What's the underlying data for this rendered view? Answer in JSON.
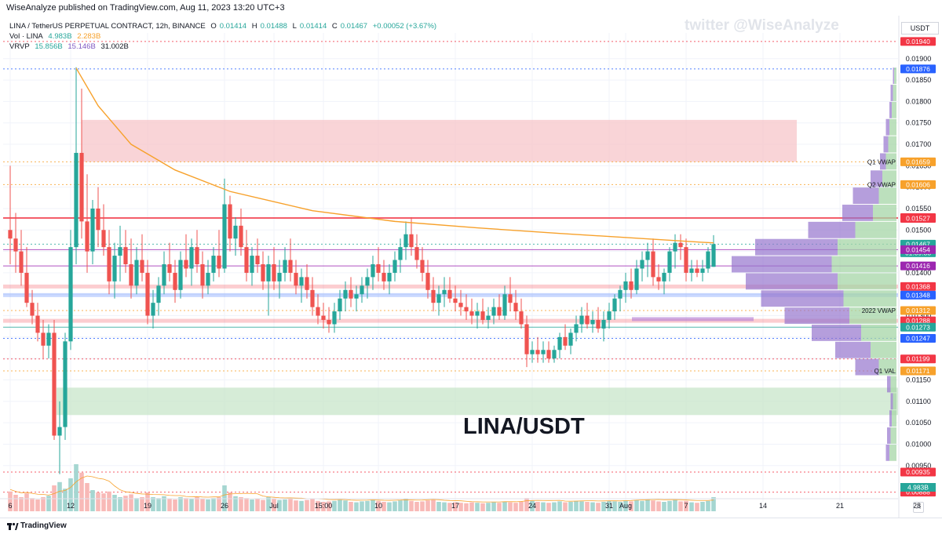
{
  "header": {
    "published": "WiseAnalyze published on TradingView.com, Aug 11, 2023 13:20 UTC+3"
  },
  "legend": {
    "symbol_line": "LINA / TetherUS PERPETUAL CONTRACT, 12h, BINANCE",
    "ohlc": [
      {
        "k": "O",
        "v": "0.01414"
      },
      {
        "k": "H",
        "v": "0.01488"
      },
      {
        "k": "L",
        "v": "0.01414"
      },
      {
        "k": "C",
        "v": "0.01467"
      }
    ],
    "change": "+0.00052 (+3.67%)",
    "vol_label": "Vol · LINA",
    "vol_1": "4.983B",
    "vol_2": "2.283B",
    "vrvp_label": "VRVP",
    "vrvp_1": "15.856B",
    "vrvp_2": "15.146B",
    "vrvp_3": "31.002B"
  },
  "watermark": "twitter @WiseAnalyze",
  "big_title": "LINA/USDT",
  "currency_button": "USDT",
  "footer": {
    "brand": "TradingView",
    "auto": "A"
  },
  "colors": {
    "up": "#26a69a",
    "down": "#ef5350",
    "vwap": "#f7a12b",
    "resistance_zone": "#f7c6c9",
    "support_zone": "#c8e6c9",
    "poc_purple": "#b07cd6",
    "vp_up": "#a5d6a7",
    "vp_down": "#9575cd"
  },
  "chart_data": {
    "type": "candlestick",
    "title": "LINA/USDT",
    "pair": "LINA / TetherUS PERPETUAL CONTRACT",
    "interval": "12h",
    "exchange": "BINANCE",
    "ylim": [
      0.0088,
      0.0196
    ],
    "y_ticks": [
      "0.00950",
      "0.01000",
      "0.01050",
      "0.01100",
      "0.01150",
      "0.01200",
      "0.01250",
      "0.01300",
      "0.01350",
      "0.01400",
      "0.01450",
      "0.01500",
      "0.01550",
      "0.01600",
      "0.01650",
      "0.01700",
      "0.01750",
      "0.01800",
      "0.01850",
      "0.01900"
    ],
    "x_ticks": [
      {
        "label": "6",
        "i": 0
      },
      {
        "label": "12",
        "i": 11
      },
      {
        "label": "19",
        "i": 25
      },
      {
        "label": "26",
        "i": 39
      },
      {
        "label": "Jul",
        "i": 48
      },
      {
        "label": "15:00",
        "i": 57
      },
      {
        "label": "10",
        "i": 67
      },
      {
        "label": "17",
        "i": 81
      },
      {
        "label": "24",
        "i": 95
      },
      {
        "label": "31",
        "i": 109
      },
      {
        "label": "Aug",
        "i": 112
      },
      {
        "label": "7",
        "i": 123
      },
      {
        "label": "14",
        "i": 137
      },
      {
        "label": "21",
        "i": 151
      },
      {
        "label": "28",
        "i": 165
      }
    ],
    "candles_ohlc": [
      [
        0.015,
        0.0165,
        0.0142,
        0.0148
      ],
      [
        0.0148,
        0.0154,
        0.014,
        0.0145
      ],
      [
        0.0145,
        0.015,
        0.0137,
        0.014
      ],
      [
        0.014,
        0.0146,
        0.0132,
        0.0133
      ],
      [
        0.0133,
        0.0136,
        0.0128,
        0.013
      ],
      [
        0.013,
        0.0133,
        0.0124,
        0.0126
      ],
      [
        0.0126,
        0.0129,
        0.012,
        0.0123
      ],
      [
        0.0123,
        0.0128,
        0.012,
        0.0126
      ],
      [
        0.0126,
        0.0129,
        0.0101,
        0.0102
      ],
      [
        0.0102,
        0.011,
        0.0093,
        0.0104
      ],
      [
        0.0104,
        0.0126,
        0.0101,
        0.0124
      ],
      [
        0.0124,
        0.015,
        0.0122,
        0.0146
      ],
      [
        0.0146,
        0.0188,
        0.0142,
        0.0168
      ],
      [
        0.0168,
        0.0183,
        0.0148,
        0.0152
      ],
      [
        0.0152,
        0.0163,
        0.014,
        0.0145
      ],
      [
        0.0145,
        0.0157,
        0.0142,
        0.0155
      ],
      [
        0.0155,
        0.016,
        0.0146,
        0.015
      ],
      [
        0.015,
        0.0156,
        0.0144,
        0.0146
      ],
      [
        0.0146,
        0.015,
        0.0135,
        0.0138
      ],
      [
        0.0138,
        0.0147,
        0.0134,
        0.0144
      ],
      [
        0.0144,
        0.0151,
        0.0138,
        0.0146
      ],
      [
        0.0146,
        0.015,
        0.014,
        0.0142
      ],
      [
        0.0142,
        0.0148,
        0.0134,
        0.0137
      ],
      [
        0.0137,
        0.0146,
        0.0135,
        0.0143
      ],
      [
        0.0143,
        0.0149,
        0.0138,
        0.014
      ],
      [
        0.014,
        0.0143,
        0.0128,
        0.013
      ],
      [
        0.013,
        0.0136,
        0.0127,
        0.0133
      ],
      [
        0.0133,
        0.0139,
        0.013,
        0.0137
      ],
      [
        0.0137,
        0.0145,
        0.0135,
        0.0142
      ],
      [
        0.0142,
        0.0147,
        0.0138,
        0.014
      ],
      [
        0.014,
        0.0143,
        0.0133,
        0.0136
      ],
      [
        0.0136,
        0.0145,
        0.0134,
        0.0143
      ],
      [
        0.0143,
        0.0149,
        0.0139,
        0.0141
      ],
      [
        0.0141,
        0.0148,
        0.0137,
        0.0146
      ],
      [
        0.0146,
        0.015,
        0.014,
        0.0142
      ],
      [
        0.0142,
        0.0145,
        0.0134,
        0.0137
      ],
      [
        0.0137,
        0.0143,
        0.0135,
        0.014
      ],
      [
        0.014,
        0.0146,
        0.0138,
        0.0144
      ],
      [
        0.0144,
        0.015,
        0.0139,
        0.0141
      ],
      [
        0.0141,
        0.0162,
        0.014,
        0.0156
      ],
      [
        0.0156,
        0.0158,
        0.0145,
        0.0148
      ],
      [
        0.0148,
        0.0153,
        0.0144,
        0.0151
      ],
      [
        0.0151,
        0.0155,
        0.0144,
        0.0146
      ],
      [
        0.0146,
        0.015,
        0.0138,
        0.014
      ],
      [
        0.014,
        0.0146,
        0.0137,
        0.0144
      ],
      [
        0.0144,
        0.0148,
        0.014,
        0.0142
      ],
      [
        0.0142,
        0.0145,
        0.0136,
        0.0138
      ],
      [
        0.0138,
        0.0144,
        0.013,
        0.0142
      ],
      [
        0.0142,
        0.0146,
        0.0136,
        0.0138
      ],
      [
        0.0138,
        0.0143,
        0.0134,
        0.014
      ],
      [
        0.014,
        0.0146,
        0.0138,
        0.0143
      ],
      [
        0.0143,
        0.0148,
        0.0138,
        0.014
      ],
      [
        0.014,
        0.0143,
        0.0135,
        0.0137
      ],
      [
        0.0137,
        0.0141,
        0.0133,
        0.0139
      ],
      [
        0.0139,
        0.0142,
        0.0134,
        0.0136
      ],
      [
        0.0136,
        0.0139,
        0.013,
        0.0132
      ],
      [
        0.0132,
        0.0135,
        0.0128,
        0.013
      ],
      [
        0.013,
        0.0133,
        0.0127,
        0.0129
      ],
      [
        0.0129,
        0.0132,
        0.0126,
        0.0128
      ],
      [
        0.0128,
        0.0133,
        0.0126,
        0.0131
      ],
      [
        0.0131,
        0.0136,
        0.0129,
        0.0134
      ],
      [
        0.0134,
        0.0138,
        0.0131,
        0.0136
      ],
      [
        0.0136,
        0.0139,
        0.0132,
        0.0134
      ],
      [
        0.0134,
        0.0137,
        0.0131,
        0.0135
      ],
      [
        0.0135,
        0.0139,
        0.0133,
        0.0137
      ],
      [
        0.0137,
        0.0141,
        0.0134,
        0.0139
      ],
      [
        0.0139,
        0.0144,
        0.0136,
        0.0142
      ],
      [
        0.0142,
        0.0146,
        0.0138,
        0.014
      ],
      [
        0.014,
        0.0143,
        0.0136,
        0.0138
      ],
      [
        0.0138,
        0.0142,
        0.0135,
        0.014
      ],
      [
        0.014,
        0.0145,
        0.0138,
        0.0143
      ],
      [
        0.0143,
        0.0148,
        0.014,
        0.0146
      ],
      [
        0.0146,
        0.0152,
        0.0143,
        0.0149
      ],
      [
        0.0149,
        0.0153,
        0.0144,
        0.0146
      ],
      [
        0.0146,
        0.0149,
        0.0141,
        0.0143
      ],
      [
        0.0143,
        0.0146,
        0.0138,
        0.014
      ],
      [
        0.014,
        0.0143,
        0.0134,
        0.0136
      ],
      [
        0.0136,
        0.0139,
        0.0131,
        0.0133
      ],
      [
        0.0133,
        0.0137,
        0.013,
        0.0135
      ],
      [
        0.0135,
        0.0139,
        0.0132,
        0.0136
      ],
      [
        0.0136,
        0.0139,
        0.0133,
        0.0134
      ],
      [
        0.0134,
        0.0137,
        0.0131,
        0.0133
      ],
      [
        0.0133,
        0.0136,
        0.013,
        0.0132
      ],
      [
        0.0132,
        0.0135,
        0.0129,
        0.0131
      ],
      [
        0.0131,
        0.0134,
        0.0128,
        0.013
      ],
      [
        0.013,
        0.0133,
        0.0127,
        0.0131
      ],
      [
        0.0131,
        0.0134,
        0.0128,
        0.0129
      ],
      [
        0.0129,
        0.0132,
        0.0127,
        0.013
      ],
      [
        0.013,
        0.0134,
        0.0128,
        0.0132
      ],
      [
        0.0132,
        0.0135,
        0.0129,
        0.013
      ],
      [
        0.013,
        0.0137,
        0.0129,
        0.0135
      ],
      [
        0.0135,
        0.0139,
        0.0131,
        0.0133
      ],
      [
        0.0133,
        0.0136,
        0.0129,
        0.0131
      ],
      [
        0.0131,
        0.0134,
        0.0127,
        0.0128
      ],
      [
        0.0128,
        0.013,
        0.0118,
        0.0121
      ],
      [
        0.0121,
        0.0124,
        0.0119,
        0.0122
      ],
      [
        0.0122,
        0.0125,
        0.0119,
        0.0121
      ],
      [
        0.0121,
        0.0124,
        0.0119,
        0.0122
      ],
      [
        0.0122,
        0.0124,
        0.0119,
        0.012
      ],
      [
        0.012,
        0.0123,
        0.0119,
        0.0122
      ],
      [
        0.0122,
        0.0126,
        0.012,
        0.0125
      ],
      [
        0.0125,
        0.0128,
        0.0122,
        0.0123
      ],
      [
        0.0123,
        0.0127,
        0.0121,
        0.0126
      ],
      [
        0.0126,
        0.013,
        0.0124,
        0.0128
      ],
      [
        0.0128,
        0.0132,
        0.0126,
        0.013
      ],
      [
        0.013,
        0.0133,
        0.0127,
        0.0128
      ],
      [
        0.0128,
        0.0131,
        0.0126,
        0.0129
      ],
      [
        0.0129,
        0.0132,
        0.0126,
        0.0127
      ],
      [
        0.0127,
        0.0131,
        0.0124,
        0.0129
      ],
      [
        0.0129,
        0.0133,
        0.0127,
        0.0131
      ],
      [
        0.0131,
        0.0135,
        0.0129,
        0.0134
      ],
      [
        0.0134,
        0.0137,
        0.0131,
        0.0136
      ],
      [
        0.0136,
        0.014,
        0.0133,
        0.0138
      ],
      [
        0.0138,
        0.0141,
        0.0134,
        0.0136
      ],
      [
        0.0136,
        0.0143,
        0.0135,
        0.0141
      ],
      [
        0.0141,
        0.0145,
        0.0138,
        0.0143
      ],
      [
        0.0143,
        0.0147,
        0.0139,
        0.0145
      ],
      [
        0.0145,
        0.0148,
        0.0137,
        0.0139
      ],
      [
        0.0139,
        0.0142,
        0.0136,
        0.0138
      ],
      [
        0.0138,
        0.0141,
        0.0135,
        0.014
      ],
      [
        0.014,
        0.0146,
        0.0138,
        0.0145
      ],
      [
        0.0145,
        0.0149,
        0.0141,
        0.0147
      ],
      [
        0.0147,
        0.0149,
        0.0143,
        0.0146
      ],
      [
        0.0146,
        0.0148,
        0.0138,
        0.014
      ],
      [
        0.014,
        0.0143,
        0.0138,
        0.0141
      ],
      [
        0.0141,
        0.0143,
        0.0139,
        0.014
      ],
      [
        0.014,
        0.0143,
        0.0138,
        0.0141
      ],
      [
        0.0141,
        0.0146,
        0.014,
        0.0145
      ],
      [
        0.01414,
        0.01488,
        0.01414,
        0.01467
      ]
    ],
    "volume_relative": [
      0.42,
      0.35,
      0.3,
      0.38,
      0.28,
      0.25,
      0.3,
      0.33,
      0.55,
      0.62,
      0.48,
      0.7,
      1.0,
      0.82,
      0.6,
      0.45,
      0.4,
      0.38,
      0.42,
      0.35,
      0.3,
      0.33,
      0.36,
      0.28,
      0.3,
      0.4,
      0.3,
      0.28,
      0.32,
      0.27,
      0.25,
      0.3,
      0.28,
      0.26,
      0.3,
      0.27,
      0.25,
      0.28,
      0.3,
      0.55,
      0.4,
      0.32,
      0.3,
      0.28,
      0.25,
      0.26,
      0.24,
      0.3,
      0.26,
      0.24,
      0.25,
      0.27,
      0.23,
      0.22,
      0.24,
      0.26,
      0.22,
      0.2,
      0.21,
      0.22,
      0.24,
      0.23,
      0.2,
      0.19,
      0.21,
      0.22,
      0.25,
      0.22,
      0.2,
      0.19,
      0.21,
      0.23,
      0.26,
      0.22,
      0.2,
      0.21,
      0.23,
      0.24,
      0.2,
      0.19,
      0.18,
      0.19,
      0.18,
      0.17,
      0.19,
      0.18,
      0.17,
      0.18,
      0.19,
      0.18,
      0.2,
      0.19,
      0.18,
      0.2,
      0.28,
      0.22,
      0.2,
      0.19,
      0.18,
      0.19,
      0.21,
      0.19,
      0.2,
      0.22,
      0.21,
      0.2,
      0.19,
      0.18,
      0.2,
      0.22,
      0.21,
      0.2,
      0.23,
      0.21,
      0.24,
      0.22,
      0.25,
      0.23,
      0.21,
      0.2,
      0.22,
      0.24,
      0.21,
      0.22,
      0.19,
      0.18,
      0.2,
      0.22,
      0.3
    ],
    "vwap_anchored": [
      {
        "i": 12,
        "v": 0.01878
      },
      {
        "i": 16,
        "v": 0.0179
      },
      {
        "i": 22,
        "v": 0.017
      },
      {
        "i": 30,
        "v": 0.0164
      },
      {
        "i": 40,
        "v": 0.0159
      },
      {
        "i": 55,
        "v": 0.01545
      },
      {
        "i": 70,
        "v": 0.0152
      },
      {
        "i": 85,
        "v": 0.01505
      },
      {
        "i": 100,
        "v": 0.01492
      },
      {
        "i": 115,
        "v": 0.0148
      },
      {
        "i": 125,
        "v": 0.01472
      },
      {
        "i": 128,
        "v": 0.0147
      }
    ],
    "zones": [
      {
        "name": "resistance",
        "from_i": 13,
        "to_i": 147,
        "low": 0.01659,
        "high": 0.01757
      },
      {
        "name": "support",
        "from_i": 8,
        "to_i": 160,
        "low": 0.01068,
        "high": 0.01132
      }
    ],
    "levels": [
      {
        "value": 0.0194,
        "label": "0.01940",
        "color": "#f23645",
        "style": "dotted"
      },
      {
        "value": 0.01876,
        "label": "0.01876",
        "color": "#2962ff",
        "style": "dotted"
      },
      {
        "value": 0.01659,
        "label": "0.01659",
        "color": "#f7a12b",
        "style": "dotted",
        "tag": "Q1 VWAP"
      },
      {
        "value": 0.01606,
        "label": "0.01606",
        "color": "#f7a12b",
        "style": "dotted",
        "tag": "Q2 VWAP"
      },
      {
        "value": 0.01529,
        "label": "0.01529",
        "color": "#f23645",
        "style": "solid"
      },
      {
        "value": 0.01527,
        "label": "0.01527",
        "color": "#f23645",
        "style": "solid"
      },
      {
        "value": 0.01467,
        "label": "0.01467",
        "color": "#26a69a",
        "style": "dotted",
        "sub": "01:39:33"
      },
      {
        "value": 0.01454,
        "label": "0.01454",
        "color": "#9c27b0",
        "style": "solid"
      },
      {
        "value": 0.01416,
        "label": "0.01416",
        "color": "#9c27b0",
        "style": "solid"
      },
      {
        "value": 0.01368,
        "label": "0.01368",
        "color": "#f23645",
        "style": "band"
      },
      {
        "value": 0.01348,
        "label": "0.01348",
        "color": "#2962ff",
        "style": "band"
      },
      {
        "value": 0.01312,
        "label": "0.01312",
        "color": "#f7a12b",
        "style": "dotted",
        "tag": "2022 VWAP"
      },
      {
        "value": 0.01288,
        "label": "0.01288",
        "color": "#f23645",
        "style": "band"
      },
      {
        "value": 0.01273,
        "label": "0.01273",
        "color": "#26a69a",
        "style": "solid"
      },
      {
        "value": 0.01247,
        "label": "0.01247",
        "color": "#2962ff",
        "style": "dotted"
      },
      {
        "value": 0.01199,
        "label": "0.01199",
        "color": "#f23645",
        "style": "dotted"
      },
      {
        "value": 0.01171,
        "label": "0.01171",
        "color": "#f7a12b",
        "style": "dotted",
        "tag": "Q1 VAL"
      },
      {
        "value": 0.00935,
        "label": "0.00935",
        "color": "#f23645",
        "style": "dotted"
      },
      {
        "value": 0.00888,
        "label": "0.00888",
        "color": "#f23645",
        "style": "dotted"
      }
    ],
    "volume_label": "4.983B",
    "volume_profile": [
      {
        "price": 0.0186,
        "up": 0.02,
        "down": 0.01
      },
      {
        "price": 0.0182,
        "up": 0.03,
        "down": 0.02
      },
      {
        "price": 0.0178,
        "up": 0.04,
        "down": 0.02
      },
      {
        "price": 0.0174,
        "up": 0.06,
        "down": 0.03
      },
      {
        "price": 0.017,
        "up": 0.07,
        "down": 0.04
      },
      {
        "price": 0.0166,
        "up": 0.09,
        "down": 0.05
      },
      {
        "price": 0.0162,
        "up": 0.12,
        "down": 0.1
      },
      {
        "price": 0.0158,
        "up": 0.15,
        "down": 0.22
      },
      {
        "price": 0.0154,
        "up": 0.2,
        "down": 0.26
      },
      {
        "price": 0.015,
        "up": 0.35,
        "down": 0.4
      },
      {
        "price": 0.0146,
        "up": 0.5,
        "down": 0.7
      },
      {
        "price": 0.0142,
        "up": 0.55,
        "down": 0.85
      },
      {
        "price": 0.0138,
        "up": 0.5,
        "down": 0.78
      },
      {
        "price": 0.0134,
        "up": 0.45,
        "down": 0.7
      },
      {
        "price": 0.013,
        "up": 0.4,
        "down": 0.55
      },
      {
        "price": 0.0126,
        "up": 0.3,
        "down": 0.42
      },
      {
        "price": 0.0122,
        "up": 0.22,
        "down": 0.3
      },
      {
        "price": 0.0118,
        "up": 0.15,
        "down": 0.2
      },
      {
        "price": 0.0114,
        "up": 0.05,
        "down": 0.03
      },
      {
        "price": 0.011,
        "up": 0.03,
        "down": 0.02
      },
      {
        "price": 0.0106,
        "up": 0.04,
        "down": 0.02
      },
      {
        "price": 0.0102,
        "up": 0.05,
        "down": 0.03
      },
      {
        "price": 0.0098,
        "up": 0.06,
        "down": 0.03
      }
    ]
  }
}
